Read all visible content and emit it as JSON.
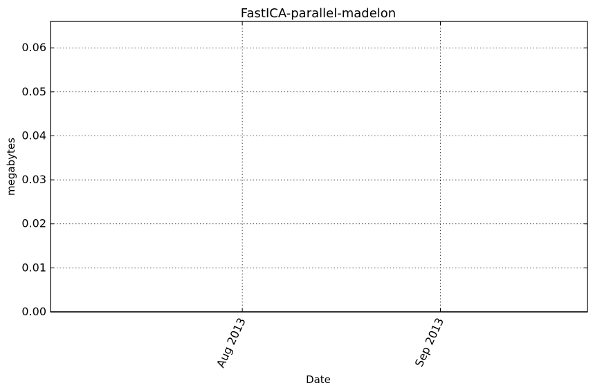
{
  "chart_data": {
    "type": "line",
    "title": "FastICA-parallel-madelon",
    "xlabel": "Date",
    "ylabel": "megabytes",
    "x_ticks": [
      "Aug 2013",
      "Sep 2013"
    ],
    "y_ticks": [
      "0.00",
      "0.01",
      "0.02",
      "0.03",
      "0.04",
      "0.05",
      "0.06"
    ],
    "ylim": [
      0,
      0.066
    ],
    "xlim": [
      "2013-07-02",
      "2013-09-24"
    ],
    "grid": true,
    "series": [
      {
        "x": [
          "2013-07-02",
          "2013-09-24"
        ],
        "values": [
          0.0,
          0.0
        ],
        "color": "#000000"
      }
    ]
  }
}
